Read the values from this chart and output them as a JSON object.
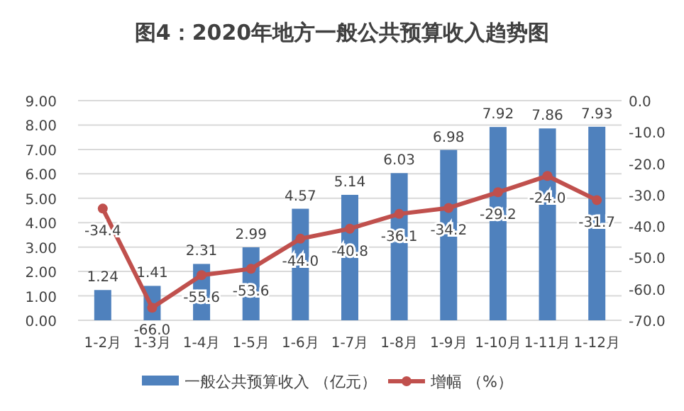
{
  "chart_data": {
    "type": "bar",
    "title": "图4：2020年地方一般公共预算收入趋势图",
    "categories": [
      "1-2月",
      "1-3月",
      "1-4月",
      "1-5月",
      "1-6月",
      "1-7月",
      "1-8月",
      "1-9月",
      "1-10月",
      "1-11月",
      "1-12月"
    ],
    "series": [
      {
        "name": "一般公共预算收入 （亿元）",
        "color": "#4f81bd",
        "values": [
          1.24,
          1.41,
          2.31,
          2.99,
          4.57,
          5.14,
          6.03,
          6.98,
          7.92,
          7.86,
          7.93
        ],
        "value_labels": [
          "1.24",
          "1.41",
          "2.31",
          "2.99",
          "4.57",
          "5.14",
          "6.03",
          "6.98",
          "7.92",
          "7.86",
          "7.93"
        ]
      },
      {
        "name": "增幅 （%）",
        "type": "line",
        "axis": "y2",
        "color": "#c0504d",
        "marker": "circle",
        "values": [
          -34.4,
          -66.0,
          -55.6,
          -53.6,
          -44.0,
          -40.8,
          -36.1,
          -34.2,
          -29.2,
          -24.0,
          -31.7
        ],
        "value_labels": [
          "-34.4",
          "-66.0",
          "-55.6",
          "-53.6",
          "-44.0",
          "-40.8",
          "-36.1",
          "-34.2",
          "-29.2",
          "-24.0",
          "-31.7"
        ]
      }
    ],
    "ylim": [
      0,
      9
    ],
    "yticks": [
      {
        "value": 0,
        "label": "0.00"
      },
      {
        "value": 1,
        "label": "1.00"
      },
      {
        "value": 2,
        "label": "2.00"
      },
      {
        "value": 3,
        "label": "3.00"
      },
      {
        "value": 4,
        "label": "4.00"
      },
      {
        "value": 5,
        "label": "5.00"
      },
      {
        "value": 6,
        "label": "6.00"
      },
      {
        "value": 7,
        "label": "7.00"
      },
      {
        "value": 8,
        "label": "8.00"
      },
      {
        "value": 9,
        "label": "9.00"
      }
    ],
    "y2lim": [
      -70,
      0
    ],
    "y2ticks": [
      {
        "value": 0,
        "label": "0.0"
      },
      {
        "value": -10,
        "label": "-10.0"
      },
      {
        "value": -20,
        "label": "-20.0"
      },
      {
        "value": -30,
        "label": "-30.0"
      },
      {
        "value": -40,
        "label": "-40.0"
      },
      {
        "value": -50,
        "label": "-50.0"
      },
      {
        "value": -60,
        "label": "-60.0"
      },
      {
        "value": -70,
        "label": "-70.0"
      }
    ],
    "grid": "y",
    "legend": "bottom"
  }
}
